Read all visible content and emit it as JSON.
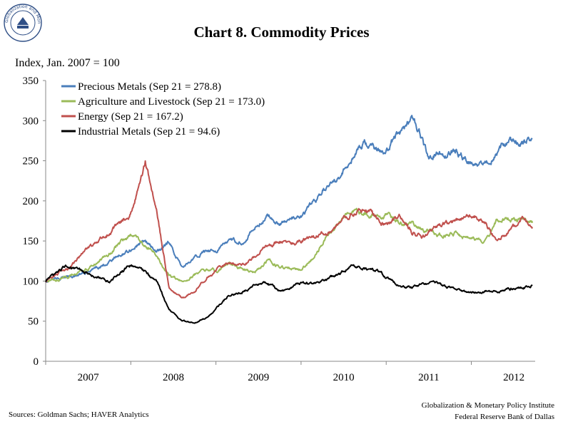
{
  "header": {
    "seal_text": "Globalization and Monetary Policy Institute",
    "title": "Chart 8. Commodity Prices"
  },
  "footer": {
    "sources": "Sources: Goldman Sachs; HAVER Analytics",
    "institute_line1": "Globalization & Monetary Policy Institute",
    "institute_line2": "Federal Reserve Bank of Dallas"
  },
  "chart_data": {
    "type": "line",
    "title": "Chart 8. Commodity Prices",
    "ylabel": "Index, Jan. 2007 = 100",
    "xlabel": "",
    "ylim": [
      0,
      350
    ],
    "yticks": [
      "0",
      "50",
      "100",
      "150",
      "200",
      "250",
      "300",
      "350"
    ],
    "xlim": [
      2007.0,
      2012.75
    ],
    "xticks": [
      "2007",
      "2008",
      "2009",
      "2010",
      "2011",
      "2012"
    ],
    "grid": false,
    "legend_position": "top-left",
    "series": [
      {
        "name": "Precious Metals (Sep 21 = 278.8)",
        "color": "#4a7ebb",
        "x": [
          2007.0,
          2007.25,
          2007.5,
          2007.75,
          2008.0,
          2008.17,
          2008.3,
          2008.45,
          2008.6,
          2008.75,
          2008.9,
          2009.0,
          2009.15,
          2009.3,
          2009.45,
          2009.6,
          2009.75,
          2009.9,
          2010.0,
          2010.15,
          2010.3,
          2010.45,
          2010.6,
          2010.75,
          2010.9,
          2011.0,
          2011.15,
          2011.3,
          2011.42,
          2011.5,
          2011.6,
          2011.7,
          2011.8,
          2011.9,
          2012.0,
          2012.15,
          2012.3,
          2012.45,
          2012.6,
          2012.72
        ],
        "y": [
          100,
          105,
          110,
          125,
          140,
          150,
          135,
          148,
          118,
          128,
          140,
          138,
          150,
          148,
          165,
          182,
          172,
          178,
          178,
          198,
          220,
          228,
          255,
          272,
          262,
          262,
          285,
          302,
          278,
          250,
          262,
          258,
          265,
          255,
          248,
          246,
          262,
          278,
          272,
          278.8
        ]
      },
      {
        "name": "Agriculture and Livestock (Sep 21 = 173.0)",
        "color": "#9bbb59",
        "x": [
          2007.0,
          2007.25,
          2007.5,
          2007.75,
          2008.0,
          2008.17,
          2008.3,
          2008.45,
          2008.6,
          2008.75,
          2008.9,
          2009.0,
          2009.15,
          2009.3,
          2009.45,
          2009.6,
          2009.75,
          2009.9,
          2010.0,
          2010.15,
          2010.3,
          2010.45,
          2010.6,
          2010.75,
          2010.9,
          2011.0,
          2011.15,
          2011.3,
          2011.42,
          2011.5,
          2011.6,
          2011.7,
          2011.8,
          2011.9,
          2012.0,
          2012.15,
          2012.3,
          2012.45,
          2012.6,
          2012.72
        ],
        "y": [
          100,
          105,
          115,
          135,
          160,
          145,
          132,
          108,
          100,
          108,
          115,
          112,
          122,
          115,
          110,
          125,
          118,
          115,
          112,
          130,
          155,
          175,
          188,
          185,
          180,
          182,
          175,
          172,
          162,
          165,
          155,
          158,
          160,
          155,
          152,
          148,
          175,
          178,
          176,
          173.0
        ]
      },
      {
        "name": "Energy (Sep 21 = 167.2)",
        "color": "#c0504d",
        "x": [
          2007.0,
          2007.25,
          2007.5,
          2007.75,
          2008.0,
          2008.17,
          2008.3,
          2008.45,
          2008.6,
          2008.75,
          2008.9,
          2009.0,
          2009.15,
          2009.3,
          2009.45,
          2009.6,
          2009.75,
          2009.9,
          2010.0,
          2010.15,
          2010.3,
          2010.45,
          2010.6,
          2010.75,
          2010.9,
          2011.0,
          2011.15,
          2011.3,
          2011.42,
          2011.5,
          2011.6,
          2011.7,
          2011.8,
          2011.9,
          2012.0,
          2012.15,
          2012.3,
          2012.45,
          2012.6,
          2012.72
        ],
        "y": [
          100,
          115,
          140,
          160,
          185,
          250,
          190,
          90,
          78,
          88,
          105,
          112,
          125,
          120,
          128,
          145,
          150,
          148,
          150,
          155,
          160,
          170,
          185,
          190,
          178,
          170,
          182,
          162,
          155,
          160,
          168,
          172,
          175,
          180,
          182,
          175,
          150,
          165,
          178,
          167.2
        ]
      },
      {
        "name": "Industrial Metals (Sep 21 = 94.6)",
        "color": "#000000",
        "x": [
          2007.0,
          2007.25,
          2007.5,
          2007.75,
          2008.0,
          2008.17,
          2008.3,
          2008.45,
          2008.6,
          2008.75,
          2008.9,
          2009.0,
          2009.15,
          2009.3,
          2009.45,
          2009.6,
          2009.75,
          2009.9,
          2010.0,
          2010.15,
          2010.3,
          2010.45,
          2010.6,
          2010.75,
          2010.9,
          2011.0,
          2011.15,
          2011.3,
          2011.42,
          2011.5,
          2011.6,
          2011.7,
          2011.8,
          2011.9,
          2012.0,
          2012.15,
          2012.3,
          2012.45,
          2012.6,
          2012.72
        ],
        "y": [
          100,
          120,
          110,
          100,
          120,
          112,
          100,
          65,
          50,
          48,
          55,
          65,
          82,
          85,
          95,
          98,
          88,
          92,
          98,
          98,
          102,
          110,
          118,
          115,
          112,
          105,
          95,
          92,
          96,
          98,
          97,
          93,
          90,
          88,
          85,
          86,
          88,
          90,
          92,
          94.6
        ]
      }
    ]
  }
}
